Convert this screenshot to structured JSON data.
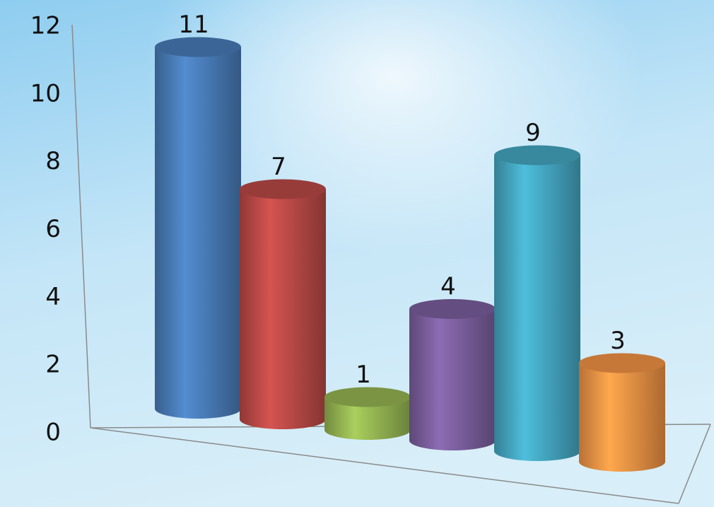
{
  "chart_data": {
    "type": "bar3d",
    "categories": [
      null,
      null,
      null,
      null,
      null,
      null
    ],
    "values": [
      11,
      7,
      1,
      4,
      9,
      3
    ],
    "colors": [
      "#4a7ebb",
      "#be4b48",
      "#98b954",
      "#7d60a0",
      "#46aac5",
      "#f79646"
    ],
    "ylim": [
      0,
      12
    ],
    "yticks": [
      0,
      2,
      4,
      6,
      8,
      10,
      12
    ]
  }
}
